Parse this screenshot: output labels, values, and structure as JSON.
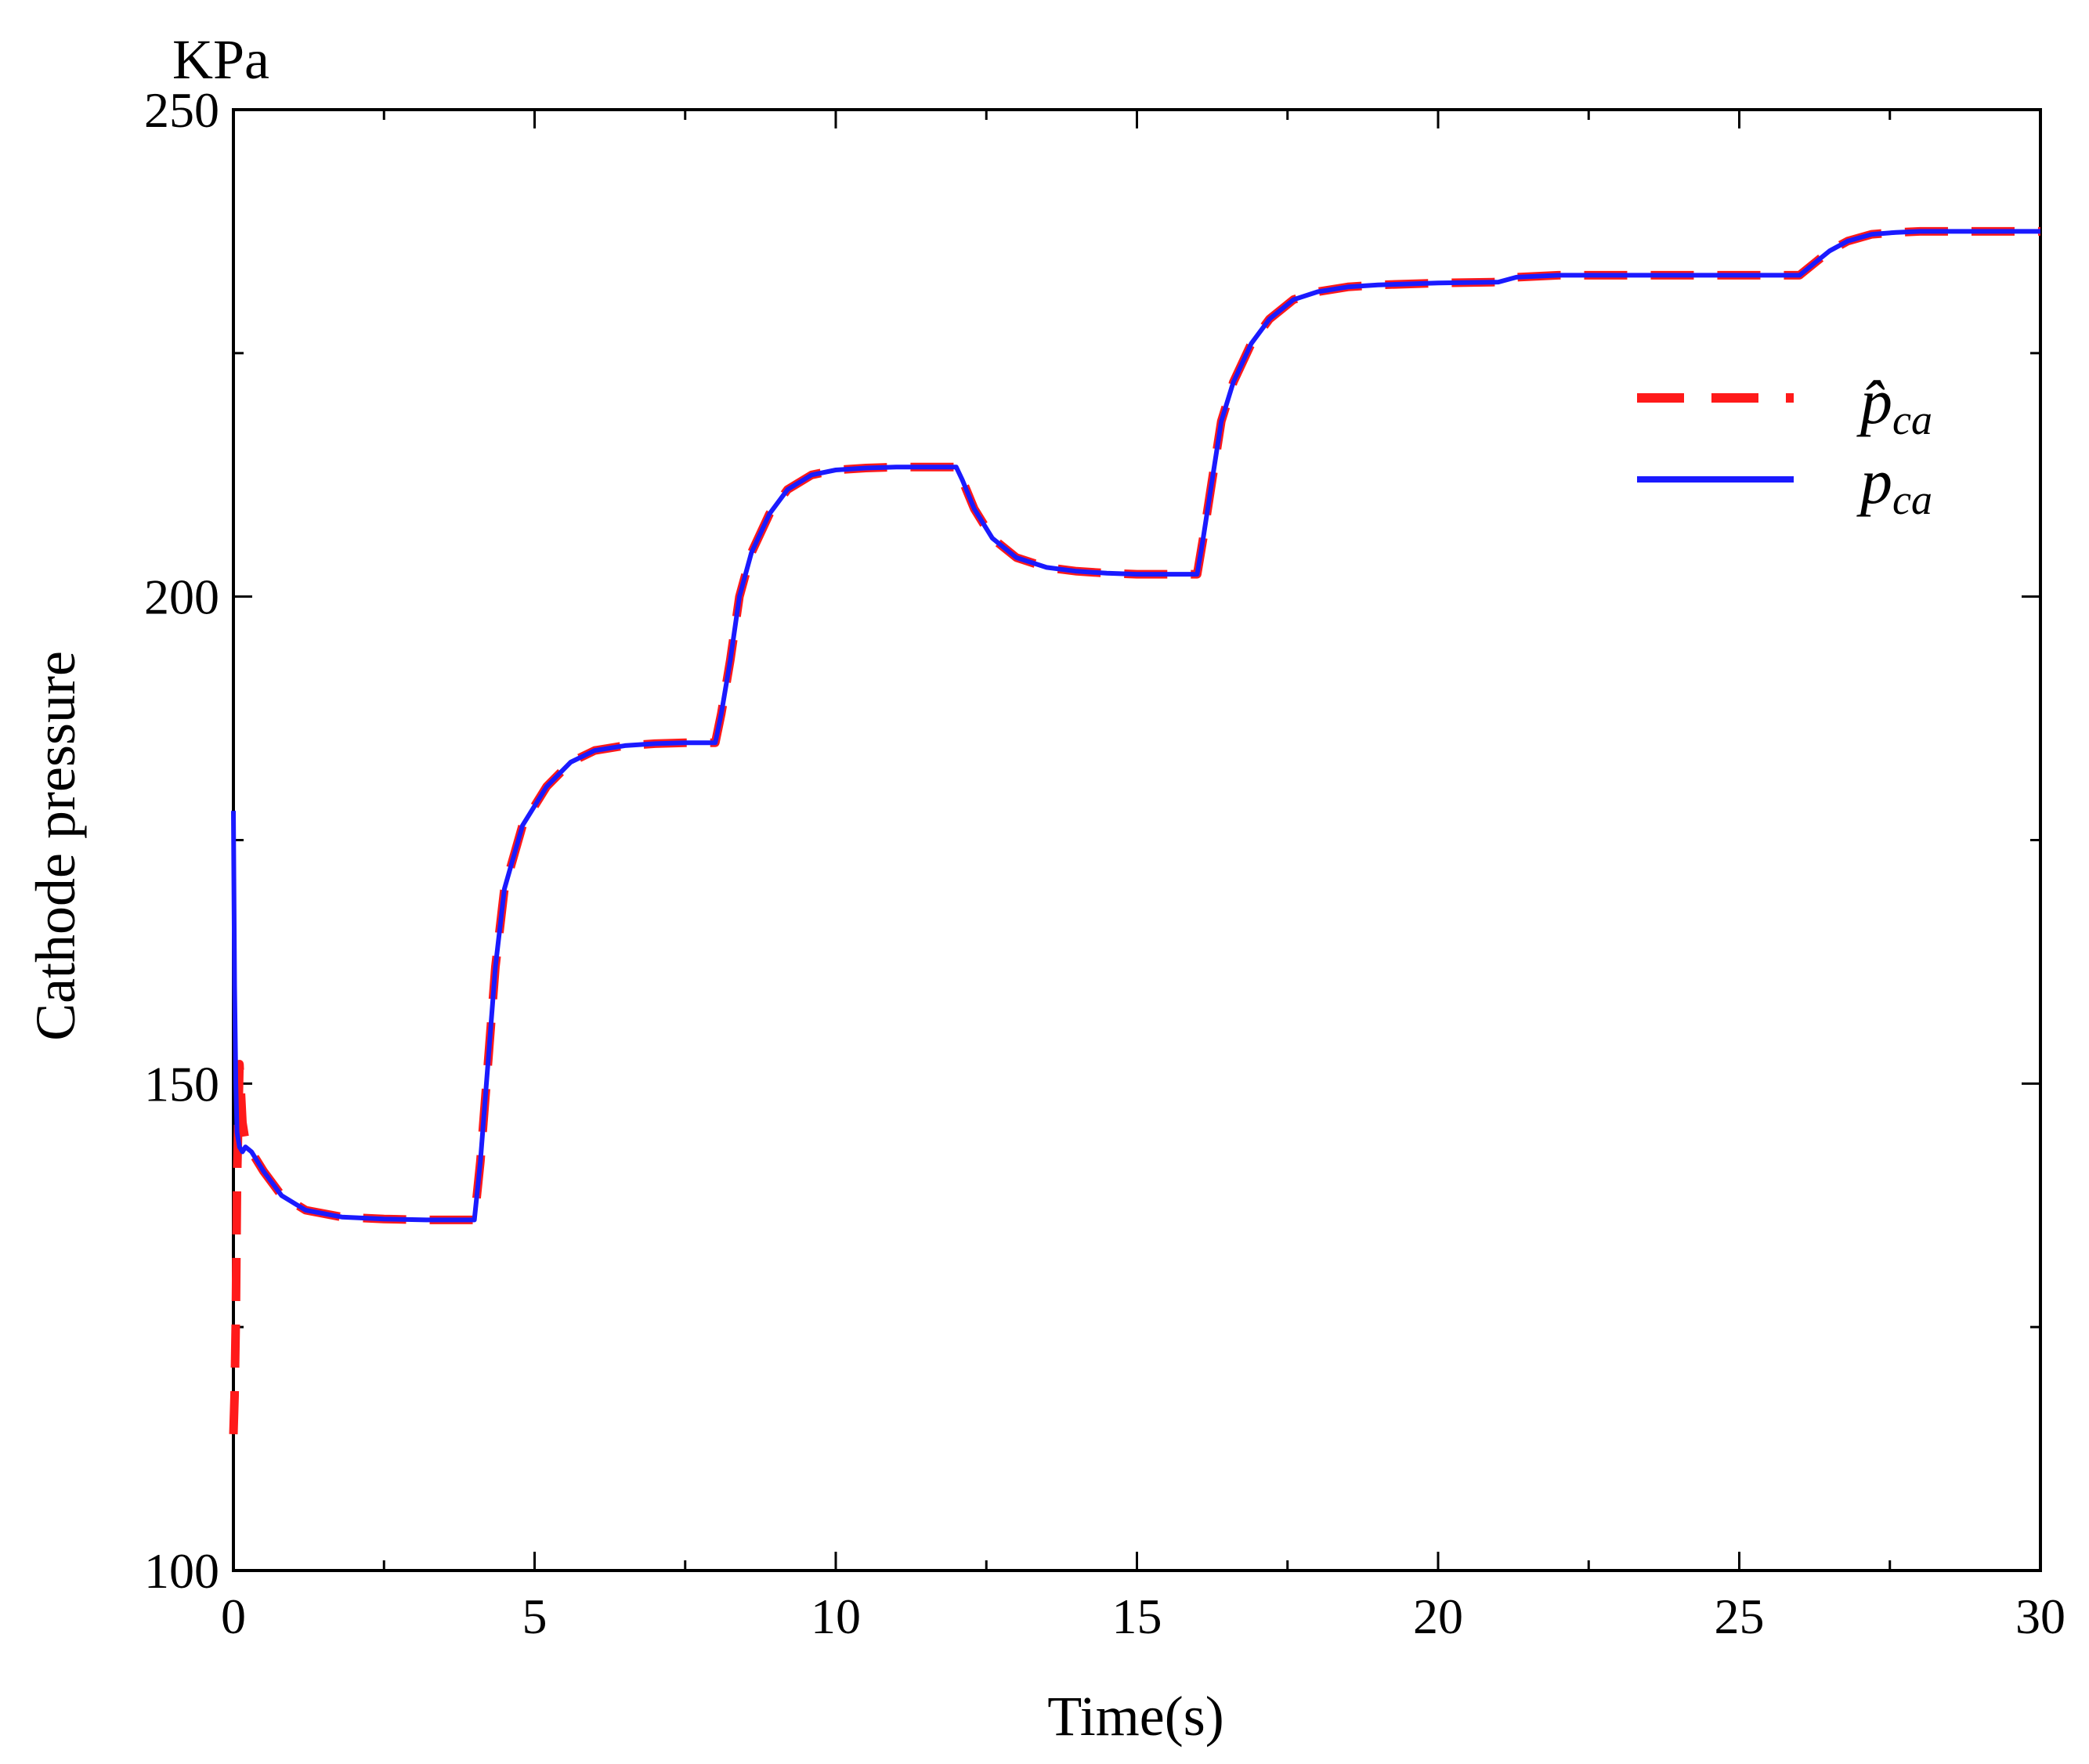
{
  "chart_data": {
    "type": "line",
    "title": "",
    "xlabel": "Time(s)",
    "ylabel": "Cathode pressure",
    "yunit": "KPa",
    "xlim": [
      0,
      30
    ],
    "ylim": [
      100,
      250
    ],
    "xticks": [
      0,
      5,
      10,
      15,
      20,
      25,
      30
    ],
    "yticks": [
      100,
      150,
      200,
      250
    ],
    "x_minor_step": 2.5,
    "y_minor_step": 25,
    "grid": false,
    "legend_position": "top-right",
    "legend": [
      {
        "symbol": "p̂",
        "subscript": "ca",
        "style": "dashed",
        "color": "#ff1a1a"
      },
      {
        "symbol": "p",
        "subscript": "ca",
        "style": "solid",
        "color": "#1a1aff"
      }
    ],
    "series": [
      {
        "name": "p̂_ca",
        "style": "dashed",
        "color": "#ff1a1a",
        "x": [
          0.0,
          0.02,
          0.04,
          0.06,
          0.1,
          0.15,
          0.2,
          0.3,
          0.5,
          0.8,
          1.2,
          1.8,
          2.5,
          3.2,
          4.0,
          4.1,
          4.2,
          4.35,
          4.5,
          4.8,
          5.2,
          5.6,
          6.0,
          6.5,
          7.0,
          7.5,
          8.0,
          8.1,
          8.25,
          8.4,
          8.6,
          8.9,
          9.2,
          9.6,
          10.0,
          10.5,
          11.0,
          11.5,
          12.0,
          12.1,
          12.3,
          12.6,
          13.0,
          13.5,
          14.0,
          14.5,
          15.0,
          15.5,
          16.0,
          16.1,
          16.25,
          16.4,
          16.6,
          16.9,
          17.2,
          17.6,
          18.0,
          18.5,
          19.0,
          20.0,
          21.0,
          21.3,
          22.0,
          23.0,
          24.0,
          25.0,
          26.0,
          26.2,
          26.5,
          26.8,
          27.2,
          27.6,
          28.0,
          28.5,
          29.0,
          30.0
        ],
        "y": [
          114,
          118,
          126,
          140,
          152,
          146,
          144,
          143,
          141,
          138.5,
          137,
          136.3,
          136.1,
          136.0,
          136.0,
          142,
          150,
          162,
          170,
          176.5,
          180.5,
          183,
          184.2,
          184.7,
          184.9,
          185.0,
          185.0,
          188,
          193.5,
          200,
          204.5,
          208.5,
          211,
          212.5,
          213.0,
          213.2,
          213.3,
          213.3,
          213.3,
          212,
          209,
          206,
          204,
          203,
          202.6,
          202.4,
          202.3,
          202.3,
          202.3,
          206,
          212,
          218,
          222,
          226,
          228.5,
          230.5,
          231.3,
          231.8,
          232.0,
          232.2,
          232.3,
          232.8,
          233.0,
          233.0,
          233.0,
          233.0,
          233.0,
          234,
          235.5,
          236.5,
          237.2,
          237.4,
          237.5,
          237.5,
          237.5,
          237.5
        ]
      },
      {
        "name": "p_ca",
        "style": "solid",
        "color": "#1a1aff",
        "x": [
          0.0,
          0.02,
          0.04,
          0.06,
          0.1,
          0.15,
          0.2,
          0.3,
          0.5,
          0.8,
          1.2,
          1.8,
          2.5,
          3.2,
          4.0,
          4.1,
          4.2,
          4.35,
          4.5,
          4.8,
          5.2,
          5.6,
          6.0,
          6.5,
          7.0,
          7.5,
          8.0,
          8.1,
          8.25,
          8.4,
          8.6,
          8.9,
          9.2,
          9.6,
          10.0,
          10.5,
          11.0,
          11.5,
          12.0,
          12.1,
          12.3,
          12.6,
          13.0,
          13.5,
          14.0,
          14.5,
          15.0,
          15.5,
          16.0,
          16.1,
          16.25,
          16.4,
          16.6,
          16.9,
          17.2,
          17.6,
          18.0,
          18.5,
          19.0,
          20.0,
          21.0,
          21.3,
          22.0,
          23.0,
          24.0,
          25.0,
          26.0,
          26.2,
          26.5,
          26.8,
          27.2,
          27.6,
          28.0,
          28.5,
          29.0,
          30.0
        ],
        "y": [
          178,
          160,
          150,
          145,
          143.5,
          143,
          143.5,
          143,
          141,
          138.5,
          137,
          136.3,
          136.1,
          136.0,
          136.0,
          142,
          150,
          162,
          170,
          176.5,
          180.5,
          183,
          184.2,
          184.7,
          184.9,
          185.0,
          185.0,
          188,
          193.5,
          200,
          204.5,
          208.5,
          211,
          212.5,
          213.0,
          213.2,
          213.3,
          213.3,
          213.3,
          212,
          209,
          206,
          204,
          203,
          202.6,
          202.4,
          202.3,
          202.3,
          202.3,
          206,
          212,
          218,
          222,
          226,
          228.5,
          230.5,
          231.3,
          231.8,
          232.0,
          232.2,
          232.3,
          232.8,
          233.0,
          233.0,
          233.0,
          233.0,
          233.0,
          234,
          235.5,
          236.5,
          237.2,
          237.4,
          237.5,
          237.5,
          237.5,
          237.5
        ]
      }
    ]
  }
}
